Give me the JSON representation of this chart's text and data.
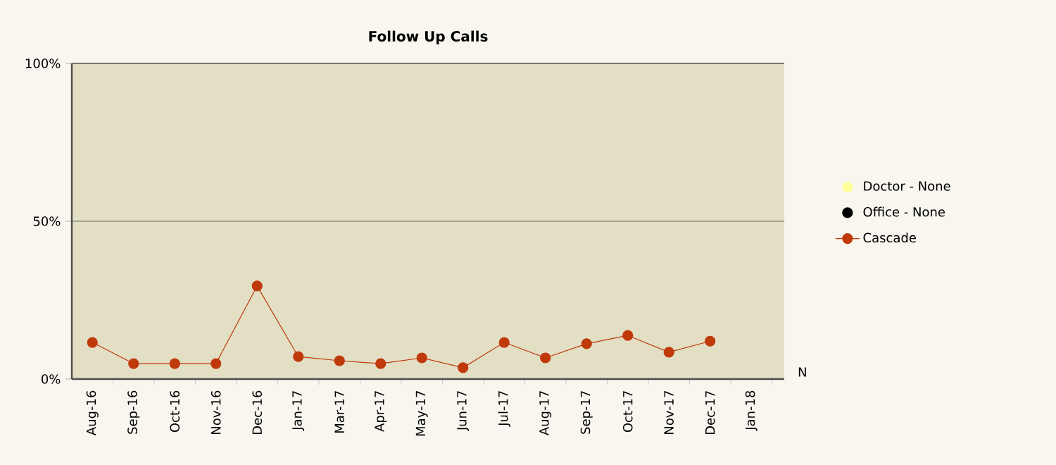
{
  "chart_data": {
    "type": "line",
    "title": "Follow Up Calls",
    "categories": [
      "Aug-16",
      "Sep-16",
      "Oct-16",
      "Nov-16",
      "Dec-16",
      "Jan-17",
      "Mar-17",
      "Apr-17",
      "May-17",
      "Jun-17",
      "Jul-17",
      "Aug-17",
      "Sep-17",
      "Oct-17",
      "Nov-17",
      "Dec-17",
      "Jan-18"
    ],
    "series": [
      {
        "name": "Doctor - None",
        "color": "#ffff99",
        "values": [
          null,
          null,
          null,
          null,
          null,
          null,
          null,
          null,
          null,
          null,
          null,
          null,
          null,
          null,
          null,
          null,
          null
        ]
      },
      {
        "name": "Office - None",
        "color": "#000000",
        "values": [
          null,
          null,
          null,
          null,
          null,
          null,
          null,
          null,
          null,
          null,
          null,
          null,
          null,
          null,
          null,
          null,
          null
        ]
      },
      {
        "name": "Cascade",
        "color": "#c0390b",
        "values": [
          11.6,
          4.9,
          4.9,
          4.9,
          29.5,
          7.1,
          5.8,
          4.9,
          6.7,
          3.6,
          11.6,
          6.7,
          11.2,
          13.8,
          8.5,
          12,
          null
        ]
      }
    ],
    "ylim": [
      0,
      100
    ],
    "yticks": [
      {
        "value": 0,
        "label": "0%"
      },
      {
        "value": 50,
        "label": "50%"
      },
      {
        "value": 100,
        "label": "100%"
      }
    ],
    "grid": "y",
    "legend": "right",
    "marker": "circle",
    "line_style": "solid",
    "annotations": [
      "N"
    ]
  }
}
